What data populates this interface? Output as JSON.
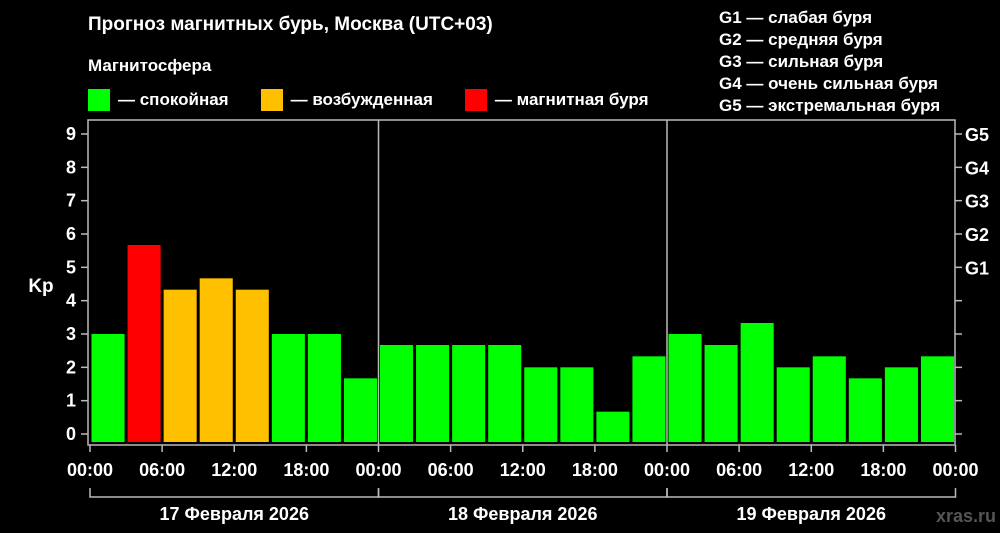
{
  "title": "Прогноз магнитных бурь, Москва (UTC+03)",
  "legend": {
    "heading": "Магнитосфера",
    "items": [
      {
        "label": "— спокойная",
        "color": "#00ff00"
      },
      {
        "label": "— возбужденная",
        "color": "#ffc000"
      },
      {
        "label": "— магнитная буря",
        "color": "#ff0000"
      }
    ]
  },
  "g_scale": [
    "G1 — слабая буря",
    "G2 — средняя буря",
    "G3 — сильная буря",
    "G4 — очень сильная буря",
    "G5 — экстремальная буря"
  ],
  "watermark": "xras.ru",
  "chart_data": {
    "type": "bar",
    "ylabel": "Kp",
    "ylim": [
      0,
      9
    ],
    "y_ticks": [
      "0",
      "1",
      "2",
      "3",
      "4",
      "5",
      "6",
      "7",
      "8",
      "9"
    ],
    "right_ticks": [
      {
        "label": "G1",
        "at": 5
      },
      {
        "label": "G2",
        "at": 6
      },
      {
        "label": "G3",
        "at": 7
      },
      {
        "label": "G4",
        "at": 8
      },
      {
        "label": "G5",
        "at": 9
      }
    ],
    "x_tick_labels": [
      "00:00",
      "06:00",
      "12:00",
      "18:00",
      "00:00",
      "06:00",
      "12:00",
      "18:00",
      "00:00",
      "06:00",
      "12:00",
      "18:00",
      "00:00"
    ],
    "days": [
      "17 Февраля 2026",
      "18 Февраля 2026",
      "19 Февраля 2026"
    ],
    "grid": false,
    "values": [
      3.0,
      5.67,
      4.33,
      4.67,
      4.33,
      3.0,
      3.0,
      1.67,
      2.67,
      2.67,
      2.67,
      2.67,
      2.0,
      2.0,
      0.67,
      2.33,
      3.0,
      2.67,
      3.33,
      2.0,
      2.33,
      1.67,
      2.0,
      2.33
    ],
    "colors": [
      "#00ff00",
      "#ff0000",
      "#ffc000",
      "#ffc000",
      "#ffc000",
      "#00ff00",
      "#00ff00",
      "#00ff00",
      "#00ff00",
      "#00ff00",
      "#00ff00",
      "#00ff00",
      "#00ff00",
      "#00ff00",
      "#00ff00",
      "#00ff00",
      "#00ff00",
      "#00ff00",
      "#00ff00",
      "#00ff00",
      "#00ff00",
      "#00ff00",
      "#00ff00",
      "#00ff00"
    ]
  }
}
